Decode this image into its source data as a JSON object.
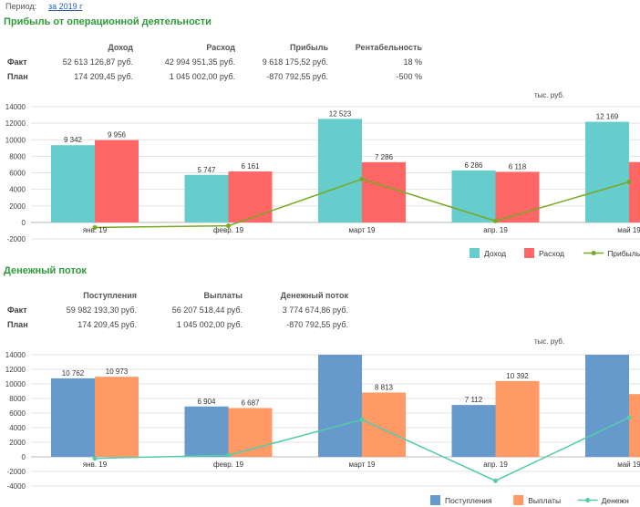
{
  "period": {
    "label": "Период:",
    "value": "за 2019 г"
  },
  "profit_section": {
    "title": "Прибыль от операционной деятельности",
    "headers": [
      "Доход",
      "Расход",
      "Прибыль",
      "Рентабельность"
    ],
    "rows": [
      {
        "label": "Факт",
        "values": [
          "52 613 126,87 руб.",
          "42 994 951,35 руб.",
          "9 618 175,52 руб.",
          "18 %"
        ]
      },
      {
        "label": "План",
        "values": [
          "174 209,45 руб.",
          "1 045 002,00 руб.",
          "-870 792,55 руб.",
          "-500 %"
        ]
      }
    ]
  },
  "cashflow_section": {
    "title": "Денежный поток",
    "headers": [
      "Поступления",
      "Выплаты",
      "Денежный поток"
    ],
    "rows": [
      {
        "label": "Факт",
        "values": [
          "59 982 193,30 руб.",
          "56 207 518,44 руб.",
          "3 774 674,86 руб."
        ]
      },
      {
        "label": "План",
        "values": [
          "174 209,45 руб.",
          "1 045 002,00 руб.",
          "-870 792,55 руб."
        ]
      }
    ]
  },
  "chart_data": [
    {
      "type": "bar",
      "unit_label": "тыс. руб.",
      "categories": [
        "янв. 19",
        "февр. 19",
        "март 19",
        "апр. 19",
        "май 19"
      ],
      "ylim": [
        -2000,
        14000
      ],
      "yticks": [
        -2000,
        0,
        2000,
        4000,
        6000,
        8000,
        10000,
        12000,
        14000
      ],
      "grid": true,
      "legend_position": "bottom-right",
      "series": [
        {
          "name": "Доход",
          "kind": "bar",
          "color": "#66cccc",
          "values": [
            9342,
            5747,
            12523,
            6286,
            12169
          ],
          "labels": [
            "9 342",
            "5 747",
            "12 523",
            "6 286",
            "12 169"
          ]
        },
        {
          "name": "Расход",
          "kind": "bar",
          "color": "#ff6666",
          "values": [
            9956,
            6161,
            7286,
            6118,
            7300
          ],
          "labels": [
            "9 956",
            "6 161",
            "7 286",
            "6 118",
            ""
          ]
        },
        {
          "name": "Прибыль",
          "kind": "line",
          "color": "#77aa22",
          "values": [
            -614,
            -414,
            5237,
            168,
            4900
          ]
        }
      ]
    },
    {
      "type": "bar",
      "unit_label": "тыс. руб.",
      "categories": [
        "янв. 19",
        "февр. 19",
        "март 19",
        "апр. 19",
        "май 19"
      ],
      "ylim": [
        -4000,
        14000
      ],
      "yticks": [
        -4000,
        -2000,
        0,
        2000,
        4000,
        6000,
        8000,
        10000,
        12000,
        14000
      ],
      "grid": true,
      "legend_position": "bottom-right",
      "series": [
        {
          "name": "Поступления",
          "kind": "bar",
          "color": "#6699cc",
          "values": [
            10762,
            6904,
            14000,
            7112,
            14000
          ],
          "labels": [
            "10 762",
            "6 904",
            "",
            "7 112",
            ""
          ]
        },
        {
          "name": "Выплаты",
          "kind": "bar",
          "color": "#ff9966",
          "values": [
            10973,
            6687,
            8813,
            10392,
            8600
          ],
          "labels": [
            "10 973",
            "6 687",
            "8 813",
            "10 392",
            ""
          ]
        },
        {
          "name": "Денежный поток",
          "legend_text": "Денежн",
          "kind": "line",
          "color": "#55ccaa",
          "values": [
            -211,
            217,
            5100,
            -3280,
            5400
          ]
        }
      ]
    }
  ]
}
